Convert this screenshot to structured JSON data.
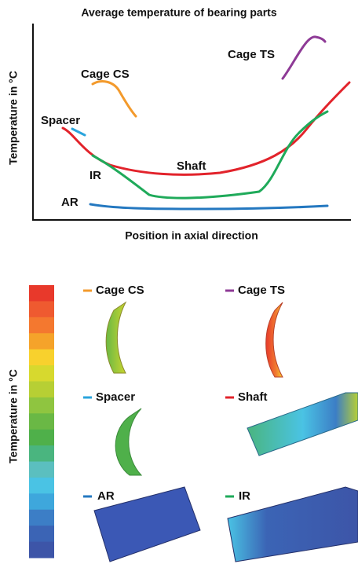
{
  "top_chart": {
    "title": "Average temperature of bearing parts",
    "y_label": "Temperature in °C",
    "x_label": "Position in axial direction",
    "curves": [
      {
        "label": "Cage TS",
        "color": "#8e3a96"
      },
      {
        "label": "Cage CS",
        "color": "#f39a2c"
      },
      {
        "label": "Spacer",
        "color": "#2aa4dc"
      },
      {
        "label": "Shaft",
        "color": "#e2232b"
      },
      {
        "label": "IR",
        "color": "#1faa5a"
      },
      {
        "label": "AR",
        "color": "#2478c0"
      }
    ]
  },
  "bottom": {
    "y_label": "Temperature in °C",
    "color_scale": [
      "#e8392b",
      "#ef5a30",
      "#f4782f",
      "#f5a32a",
      "#f8d12d",
      "#d7d92e",
      "#b7cf34",
      "#8fc540",
      "#6ab845",
      "#4fb04a",
      "#4ab57f",
      "#5bbfbf",
      "#4ac3e4",
      "#3ea7dc",
      "#3c7ec6",
      "#3b64b5",
      "#3d55a8"
    ],
    "parts": [
      {
        "label": "Cage CS",
        "color": "#f39a2c"
      },
      {
        "label": "Cage TS",
        "color": "#8e3a96"
      },
      {
        "label": "Spacer",
        "color": "#2aa4dc"
      },
      {
        "label": "Shaft",
        "color": "#e2232b"
      },
      {
        "label": "AR",
        "color": "#2478c0"
      },
      {
        "label": "IR",
        "color": "#1faa5a"
      }
    ]
  }
}
